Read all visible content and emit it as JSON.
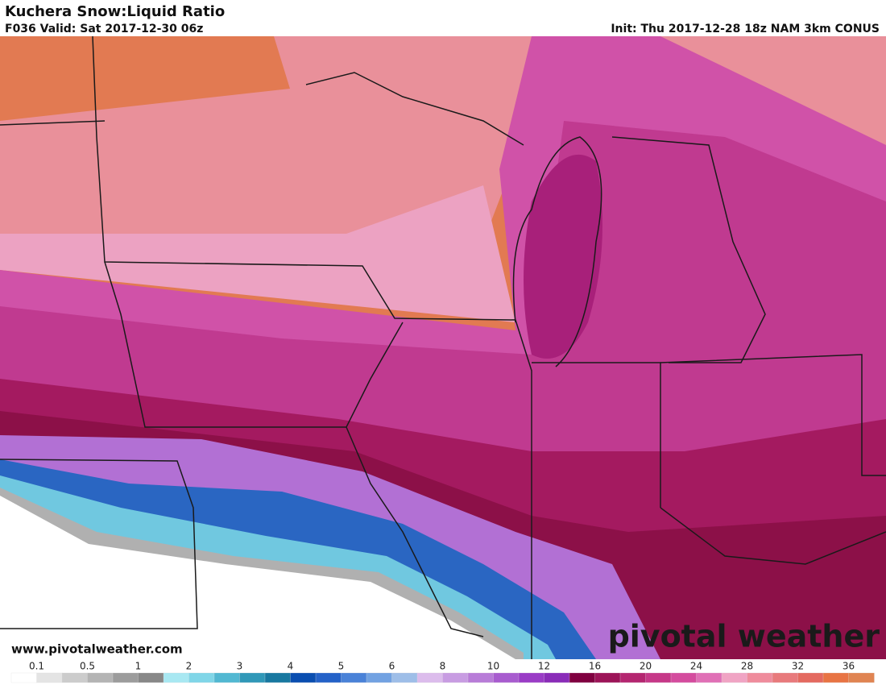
{
  "header": {
    "title": "Kuchera Snow:Liquid Ratio",
    "valid": "F036 Valid: Sat 2017-12-30 06z",
    "init": "Init: Thu 2017-12-28 18z NAM 3km CONUS"
  },
  "map": {
    "website": "www.pivotalweather.com",
    "logo": "pivotal weather"
  },
  "colorbar": {
    "labels": [
      0.1,
      0.5,
      1,
      2,
      3,
      4,
      5,
      6,
      8,
      10,
      12,
      16,
      20,
      24,
      28,
      32,
      36
    ],
    "colors": [
      "#ffffff",
      "#e4e4e4",
      "#cccccc",
      "#b4b4b4",
      "#9c9c9c",
      "#888888",
      "#a8e8f2",
      "#80d6e8",
      "#52b8d2",
      "#3098b8",
      "#1878a0",
      "#0a4eb0",
      "#2462c8",
      "#4a82d8",
      "#72a2e2",
      "#9ebee8",
      "#dcbcec",
      "#c89ce2",
      "#b87cd8",
      "#a85ccf",
      "#9a3cc6",
      "#8a2cb8",
      "#800040",
      "#9c1458",
      "#b42670",
      "#c63888",
      "#d44c9e",
      "#e070b6",
      "#f0a4c4",
      "#ef8c9c",
      "#e87a7c",
      "#e46a60",
      "#e87444",
      "#e08452"
    ]
  }
}
